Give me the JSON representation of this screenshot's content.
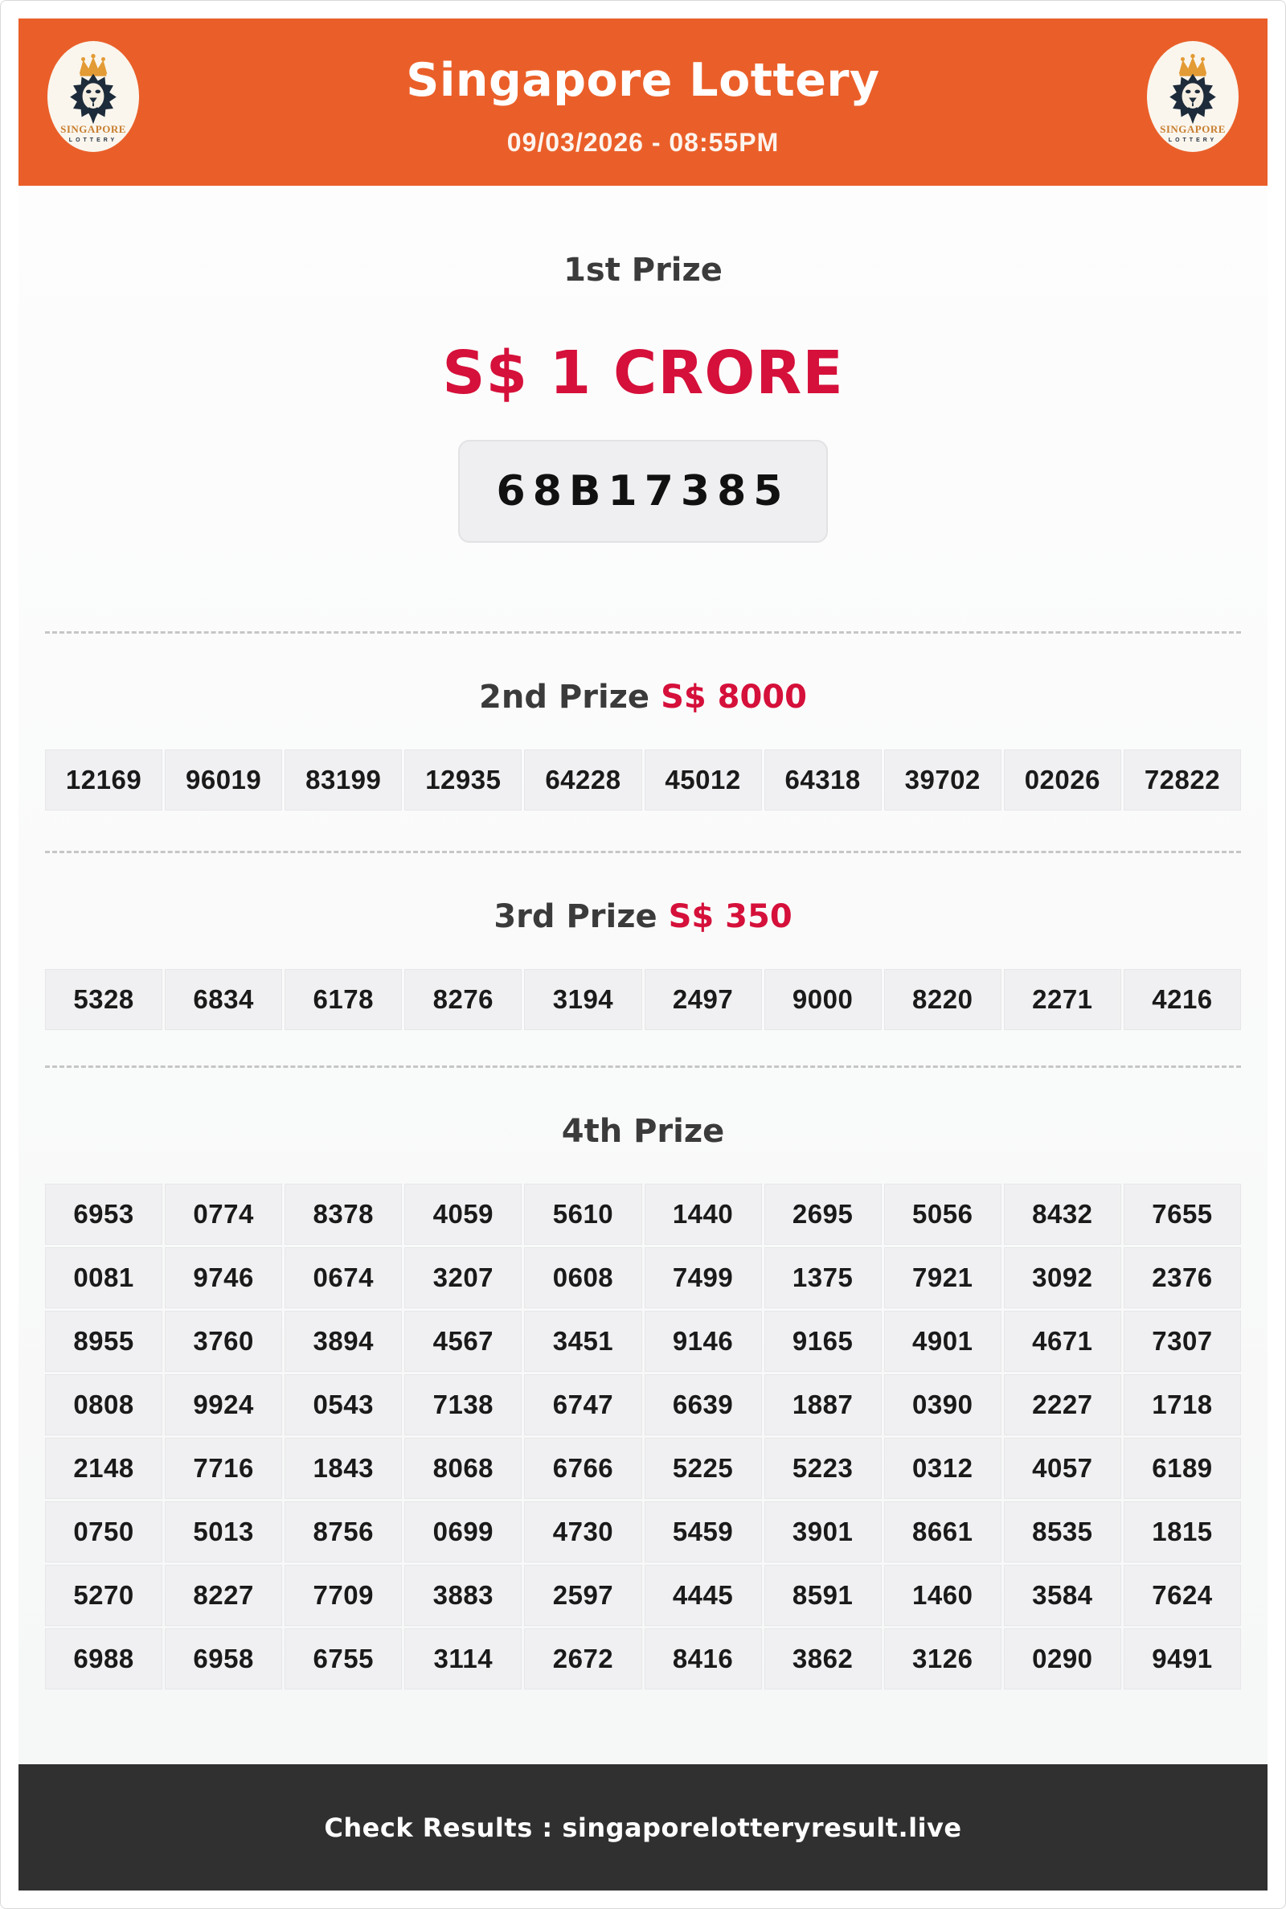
{
  "colors": {
    "header_orange": "#ea5f29",
    "accent_red": "#d5103a",
    "heading_dark": "#3b3b3b",
    "footer_dark": "#303030",
    "cell_bg": "#f0f0f2",
    "logo_cream": "#faf6ee",
    "logo_navy": "#1d2b3a",
    "logo_gold": "#e39b35"
  },
  "header": {
    "title": "Singapore Lottery",
    "datetime": "09/03/2026 - 08:55PM",
    "logo": {
      "line1": "SINGAPORE",
      "line2": "LOTTERY"
    }
  },
  "first_prize": {
    "heading": "1st Prize",
    "amount": "S$ 1 CRORE",
    "number": "68B17385"
  },
  "second_prize": {
    "heading": "2nd Prize",
    "amount": "S$ 8000",
    "numbers": [
      "12169",
      "96019",
      "83199",
      "12935",
      "64228",
      "45012",
      "64318",
      "39702",
      "02026",
      "72822"
    ]
  },
  "third_prize": {
    "heading": "3rd Prize",
    "amount": "S$ 350",
    "numbers": [
      "5328",
      "6834",
      "6178",
      "8276",
      "3194",
      "2497",
      "9000",
      "8220",
      "2271",
      "4216"
    ]
  },
  "fourth_prize": {
    "heading": "4th Prize",
    "rows": [
      [
        "6953",
        "0774",
        "8378",
        "4059",
        "5610",
        "1440",
        "2695",
        "5056",
        "8432",
        "7655"
      ],
      [
        "0081",
        "9746",
        "0674",
        "3207",
        "0608",
        "7499",
        "1375",
        "7921",
        "3092",
        "2376"
      ],
      [
        "8955",
        "3760",
        "3894",
        "4567",
        "3451",
        "9146",
        "9165",
        "4901",
        "4671",
        "7307"
      ],
      [
        "0808",
        "9924",
        "0543",
        "7138",
        "6747",
        "6639",
        "1887",
        "0390",
        "2227",
        "1718"
      ],
      [
        "2148",
        "7716",
        "1843",
        "8068",
        "6766",
        "5225",
        "5223",
        "0312",
        "4057",
        "6189"
      ],
      [
        "0750",
        "5013",
        "8756",
        "0699",
        "4730",
        "5459",
        "3901",
        "8661",
        "8535",
        "1815"
      ],
      [
        "5270",
        "8227",
        "7709",
        "3883",
        "2597",
        "4445",
        "8591",
        "1460",
        "3584",
        "7624"
      ],
      [
        "6988",
        "6958",
        "6755",
        "3114",
        "2672",
        "8416",
        "3862",
        "3126",
        "0290",
        "9491"
      ]
    ]
  },
  "footer": {
    "text": "Check Results : singaporelotteryresult.live"
  }
}
